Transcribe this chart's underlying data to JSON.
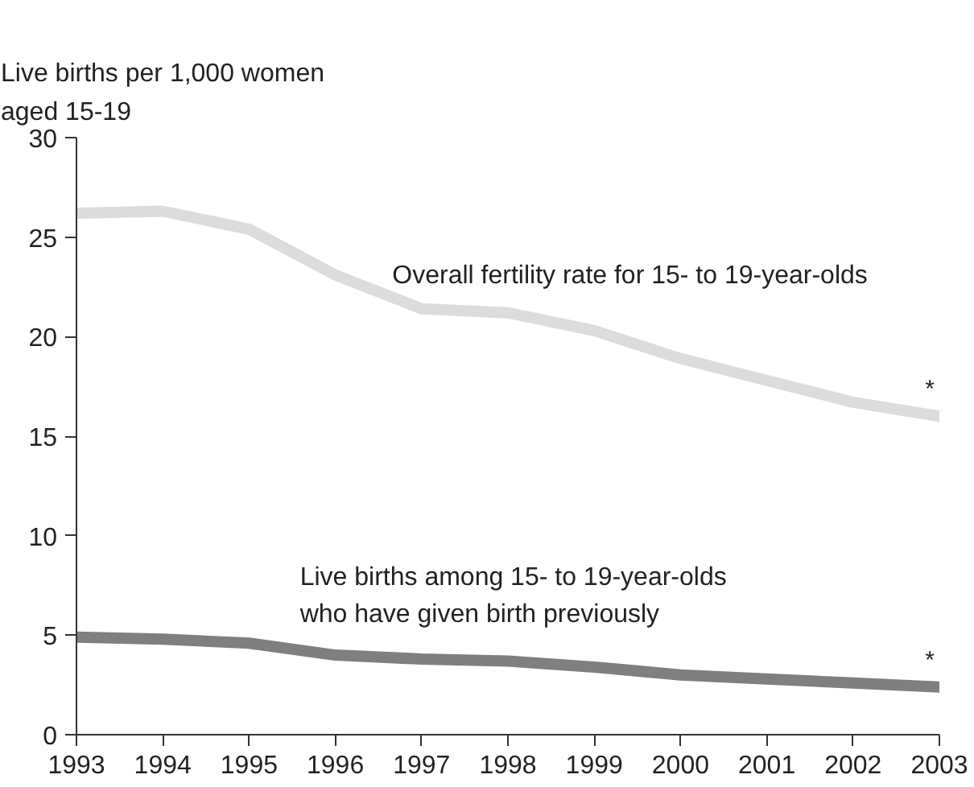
{
  "chart_data": {
    "type": "line",
    "ylabel": "Live births per 1,000 women\naged 15-19",
    "x": [
      1993,
      1994,
      1995,
      1996,
      1997,
      1998,
      1999,
      2000,
      2001,
      2002,
      2003
    ],
    "series": [
      {
        "name": "Overall fertility rate for 15- to 19-year-olds",
        "color": "#dcdcdc",
        "values": [
          26.2,
          26.3,
          25.4,
          23.1,
          21.4,
          21.2,
          20.3,
          18.9,
          17.8,
          16.7,
          16.0
        ]
      },
      {
        "name": "Live births among 15- to 19-year-olds\nwho have given birth previously",
        "color": "#7f7f7f",
        "values": [
          4.9,
          4.8,
          4.6,
          4.0,
          3.8,
          3.7,
          3.4,
          3.0,
          2.8,
          2.6,
          2.4
        ]
      }
    ],
    "annotations": [
      "*",
      "*"
    ],
    "xlim": [
      1993,
      2003
    ],
    "xticks": [
      1993,
      1994,
      1995,
      1996,
      1997,
      1998,
      1999,
      2000,
      2001,
      2002,
      2003
    ],
    "ylim": [
      0,
      30
    ],
    "yticks": [
      0,
      5,
      10,
      15,
      20,
      25,
      30
    ],
    "grid": false,
    "marker": "none",
    "line_style": "solid"
  }
}
